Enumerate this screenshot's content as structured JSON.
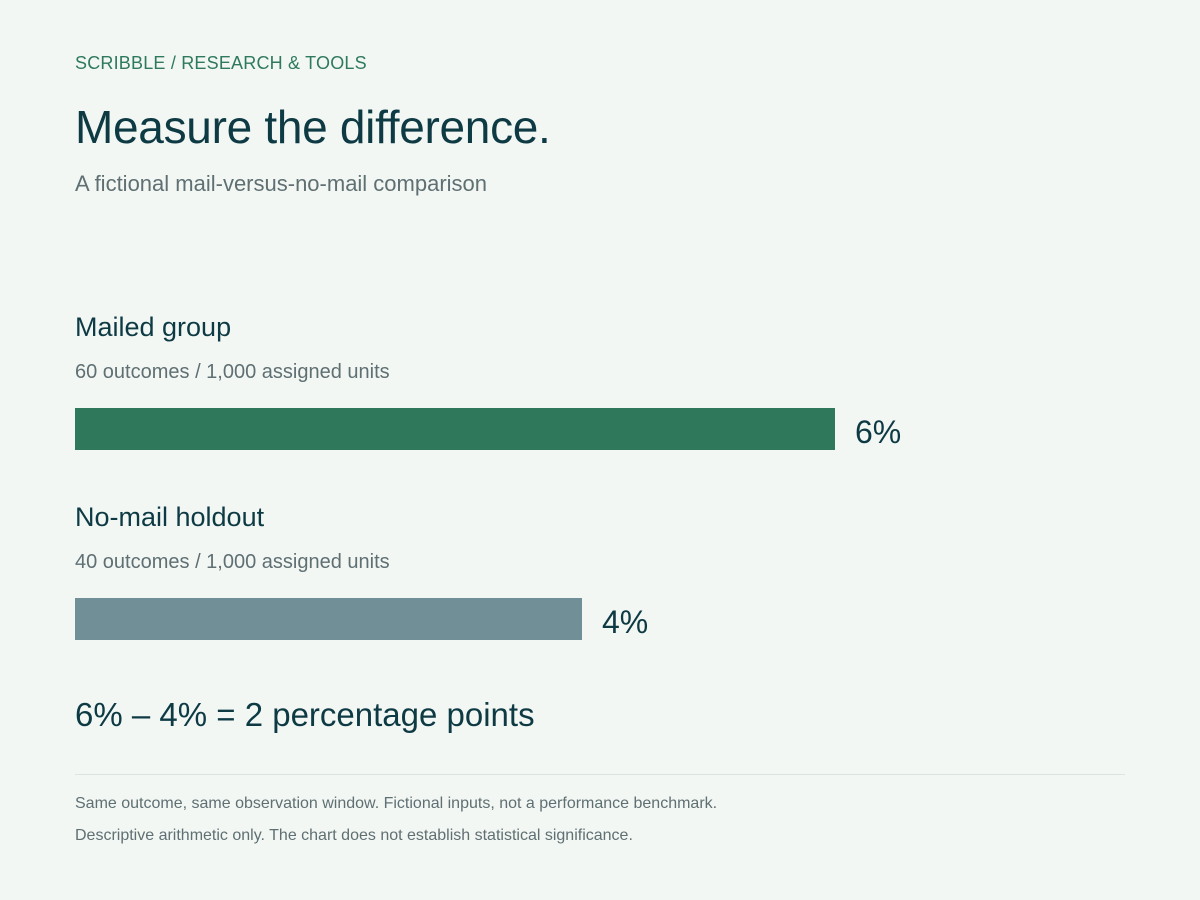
{
  "header": {
    "eyebrow": "SCRIBBLE / RESEARCH & TOOLS",
    "title": "Measure the difference.",
    "subtitle": "A fictional mail-versus-no-mail comparison"
  },
  "chart_data": {
    "type": "bar",
    "orientation": "horizontal",
    "xlim": [
      0,
      0.06
    ],
    "series": [
      {
        "name": "Mailed group",
        "detail": "60 outcomes / 1,000 assigned units",
        "value": 0.06,
        "label": "6%",
        "color": "#2f785c"
      },
      {
        "name": "No-mail holdout",
        "detail": "40 outcomes / 1,000 assigned units",
        "value": 0.04,
        "label": "4%",
        "color": "#718f97"
      }
    ],
    "annotation": "6% – 4% = 2 percentage points"
  },
  "footer": {
    "notes": [
      "Same outcome, same observation window. Fictional inputs, not a performance benchmark.",
      "Descriptive arithmetic only. The chart does not establish statistical significance."
    ]
  }
}
